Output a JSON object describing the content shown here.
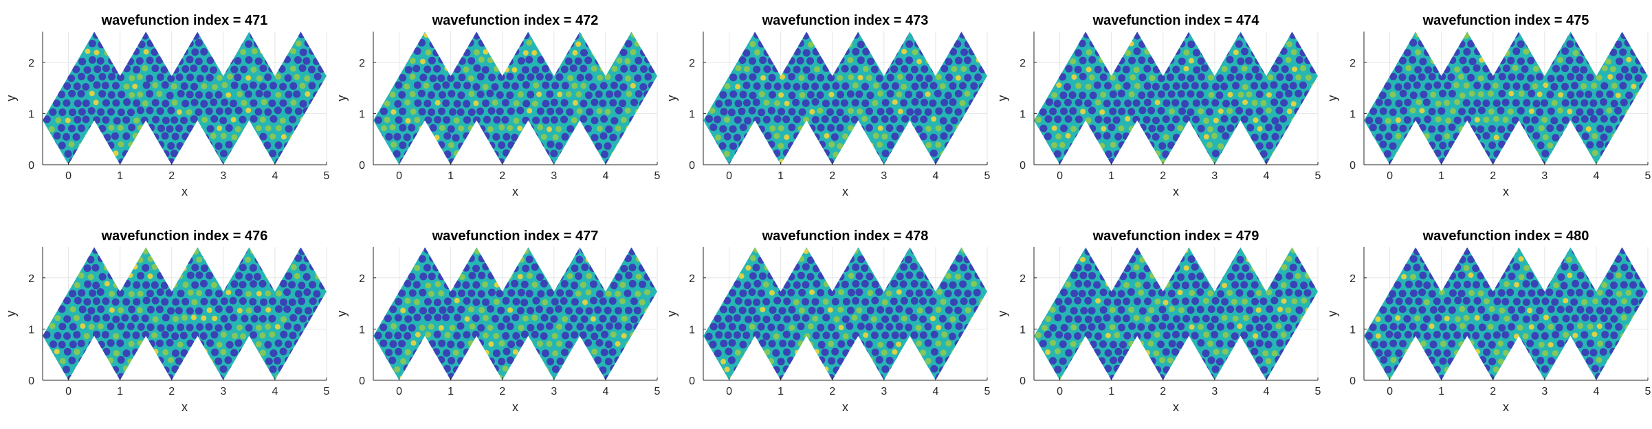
{
  "chart_data": [
    {
      "type": "heatmap",
      "title": "wavefunction index = 471",
      "xlabel": "x",
      "ylabel": "y",
      "xlim": [
        -0.5,
        5
      ],
      "ylim": [
        0,
        2.6
      ],
      "xticks": [
        "0",
        "1",
        "2",
        "3",
        "4",
        "5"
      ],
      "yticks": [
        "0",
        "1",
        "2"
      ],
      "grid": true,
      "colormap": "parula"
    },
    {
      "type": "heatmap",
      "title": "wavefunction index = 472",
      "xlabel": "x",
      "ylabel": "y",
      "xlim": [
        -0.5,
        5
      ],
      "ylim": [
        0,
        2.6
      ],
      "xticks": [
        "0",
        "1",
        "2",
        "3",
        "4",
        "5"
      ],
      "yticks": [
        "0",
        "1",
        "2"
      ],
      "grid": true,
      "colormap": "parula"
    },
    {
      "type": "heatmap",
      "title": "wavefunction index = 473",
      "xlabel": "x",
      "ylabel": "y",
      "xlim": [
        -0.5,
        5
      ],
      "ylim": [
        0,
        2.6
      ],
      "xticks": [
        "0",
        "1",
        "2",
        "3",
        "4",
        "5"
      ],
      "yticks": [
        "0",
        "1",
        "2"
      ],
      "grid": true,
      "colormap": "parula"
    },
    {
      "type": "heatmap",
      "title": "wavefunction index = 474",
      "xlabel": "x",
      "ylabel": "y",
      "xlim": [
        -0.5,
        5
      ],
      "ylim": [
        0,
        2.6
      ],
      "xticks": [
        "0",
        "1",
        "2",
        "3",
        "4",
        "5"
      ],
      "yticks": [
        "0",
        "1",
        "2"
      ],
      "grid": true,
      "colormap": "parula"
    },
    {
      "type": "heatmap",
      "title": "wavefunction index = 475",
      "xlabel": "x",
      "ylabel": "y",
      "xlim": [
        -0.5,
        5
      ],
      "ylim": [
        0,
        2.6
      ],
      "xticks": [
        "0",
        "1",
        "2",
        "3",
        "4",
        "5"
      ],
      "yticks": [
        "0",
        "1",
        "2"
      ],
      "grid": true,
      "colormap": "parula"
    },
    {
      "type": "heatmap",
      "title": "wavefunction index = 476",
      "xlabel": "x",
      "ylabel": "y",
      "xlim": [
        -0.5,
        5
      ],
      "ylim": [
        0,
        2.6
      ],
      "xticks": [
        "0",
        "1",
        "2",
        "3",
        "4",
        "5"
      ],
      "yticks": [
        "0",
        "1",
        "2"
      ],
      "grid": true,
      "colormap": "parula"
    },
    {
      "type": "heatmap",
      "title": "wavefunction index = 477",
      "xlabel": "x",
      "ylabel": "y",
      "xlim": [
        -0.5,
        5
      ],
      "ylim": [
        0,
        2.6
      ],
      "xticks": [
        "0",
        "1",
        "2",
        "3",
        "4",
        "5"
      ],
      "yticks": [
        "0",
        "1",
        "2"
      ],
      "grid": true,
      "colormap": "parula"
    },
    {
      "type": "heatmap",
      "title": "wavefunction index = 478",
      "xlabel": "x",
      "ylabel": "y",
      "xlim": [
        -0.5,
        5
      ],
      "ylim": [
        0,
        2.6
      ],
      "xticks": [
        "0",
        "1",
        "2",
        "3",
        "4",
        "5"
      ],
      "yticks": [
        "0",
        "1",
        "2"
      ],
      "grid": true,
      "colormap": "parula"
    },
    {
      "type": "heatmap",
      "title": "wavefunction index = 479",
      "xlabel": "x",
      "ylabel": "y",
      "xlim": [
        -0.5,
        5
      ],
      "ylim": [
        0,
        2.6
      ],
      "xticks": [
        "0",
        "1",
        "2",
        "3",
        "4",
        "5"
      ],
      "yticks": [
        "0",
        "1",
        "2"
      ],
      "grid": true,
      "colormap": "parula"
    },
    {
      "type": "heatmap",
      "title": "wavefunction index = 480",
      "xlabel": "x",
      "ylabel": "y",
      "xlim": [
        -0.5,
        5
      ],
      "ylim": [
        0,
        2.6
      ],
      "xticks": [
        "0",
        "1",
        "2",
        "3",
        "4",
        "5"
      ],
      "yticks": [
        "0",
        "1",
        "2"
      ],
      "grid": true,
      "colormap": "parula"
    }
  ],
  "colors": {
    "background": "#ffffff",
    "axis": "#262626",
    "grid": "#e5e5e5",
    "field_base": "#26b6b4",
    "field_dark": "#3e2fb6",
    "field_light": "#a6cc3a",
    "field_peak": "#f2d43a"
  }
}
